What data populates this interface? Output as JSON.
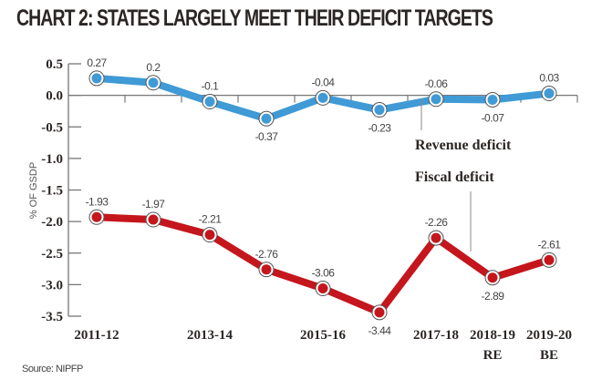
{
  "title": "CHART 2: STATES LARGELY MEET THEIR DEFICIT TARGETS",
  "source": "Source: NIPFP",
  "chart_data": {
    "type": "line",
    "title": "CHART 2: STATES LARGELY MEET THEIR DEFICIT TARGETS",
    "xlabel": "",
    "ylabel": "% OF GSDP",
    "ylim": [
      -3.5,
      0.5
    ],
    "yticks": [
      0.5,
      0.0,
      -0.5,
      -1.0,
      -1.5,
      -2.0,
      -2.5,
      -3.0,
      -3.5
    ],
    "ytick_labels": [
      "0.5",
      "0.0",
      "-0.5",
      "-1.0",
      "-1.5",
      "-2.0",
      "-2.5",
      "-3.0",
      "-3.5"
    ],
    "x": [
      "2011-12",
      "2012-13",
      "2013-14",
      "2014-15",
      "2015-16",
      "2016-17",
      "2017-18",
      "2018-19 RE",
      "2019-20 BE"
    ],
    "xtick_labels": [
      {
        "index": 0,
        "lines": [
          "2011-12"
        ]
      },
      {
        "index": 2,
        "lines": [
          "2013-14"
        ]
      },
      {
        "index": 4,
        "lines": [
          "2015-16"
        ]
      },
      {
        "index": 6,
        "lines": [
          "2017-18"
        ]
      },
      {
        "index": 7,
        "lines": [
          "2018-19",
          "RE"
        ]
      },
      {
        "index": 8,
        "lines": [
          "2019-20",
          "BE"
        ]
      }
    ],
    "grid": false,
    "series": [
      {
        "name": "Revenue deficit",
        "color": "#3f9ad6",
        "values": [
          0.27,
          0.2,
          -0.1,
          -0.37,
          -0.04,
          -0.23,
          -0.06,
          -0.07,
          0.03
        ],
        "labels": [
          "0.27",
          "0.2",
          "-0.1",
          "-0.37",
          "-0.04",
          "-0.23",
          "-0.06",
          "-0.07",
          "0.03"
        ],
        "label_pos": [
          "above",
          "above",
          "above",
          "below",
          "above",
          "below",
          "above",
          "below",
          "above"
        ]
      },
      {
        "name": "Fiscal deficit",
        "color": "#c4161c",
        "values": [
          -1.93,
          -1.97,
          -2.21,
          -2.76,
          -3.06,
          -3.44,
          -2.26,
          -2.89,
          -2.61
        ],
        "labels": [
          "-1.93",
          "-1.97",
          "-2.21",
          "-2.76",
          "-3.06",
          "-3.44",
          "-2.26",
          "-2.89",
          "-2.61"
        ],
        "label_pos": [
          "above",
          "above",
          "above",
          "above",
          "above",
          "below",
          "above",
          "below",
          "above"
        ]
      }
    ],
    "annotations": [
      "Revenue deficit",
      "Fiscal deficit"
    ]
  }
}
